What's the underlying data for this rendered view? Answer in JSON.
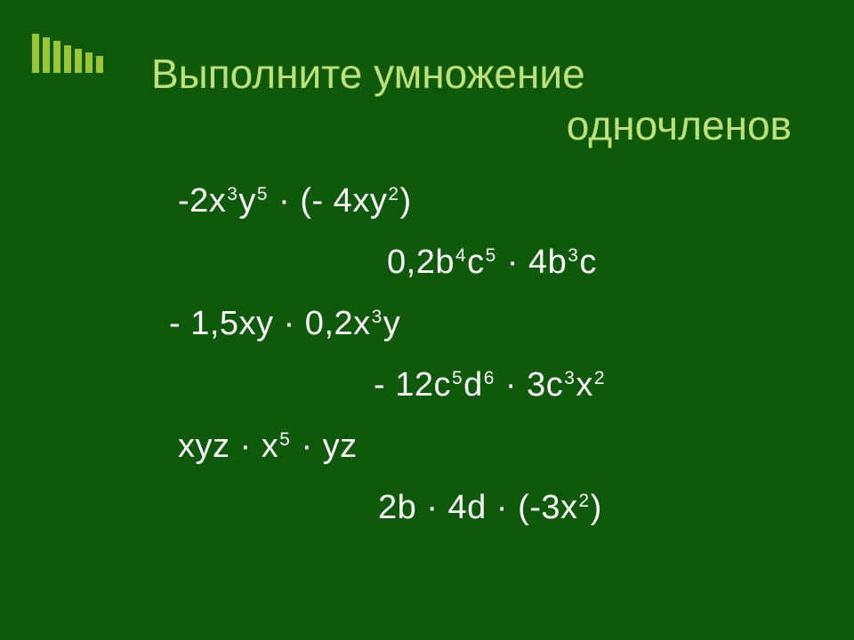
{
  "slide": {
    "background_color": "#0f5a0a",
    "title_color": "#bde07a",
    "text_color": "#ffffff",
    "decor_color": "#9ac53a",
    "title_line1": "Выполните умножение",
    "title_line2": "одночленов",
    "title_fontsize": 46,
    "body_fontsize": 38,
    "lines": {
      "l1": {
        "parts": [
          "-2x",
          "3",
          "y",
          "5",
          " · (- 4xy",
          "2",
          ")"
        ]
      },
      "l2": {
        "parts": [
          "0,2b",
          "4",
          "c",
          "5",
          " · 4b",
          "3",
          "c"
        ]
      },
      "l3": {
        "parts": [
          "- 1,5xy · 0,2x",
          "3",
          "y"
        ]
      },
      "l4": {
        "parts": [
          "- 12c",
          "5",
          "d",
          "6",
          " · 3c",
          "3",
          "x",
          "2"
        ]
      },
      "l5": {
        "parts": [
          "xyz · x",
          "5",
          " · yz"
        ]
      },
      "l6": {
        "parts": [
          "2b · 4d · (-3x",
          "2",
          ")"
        ]
      }
    }
  }
}
